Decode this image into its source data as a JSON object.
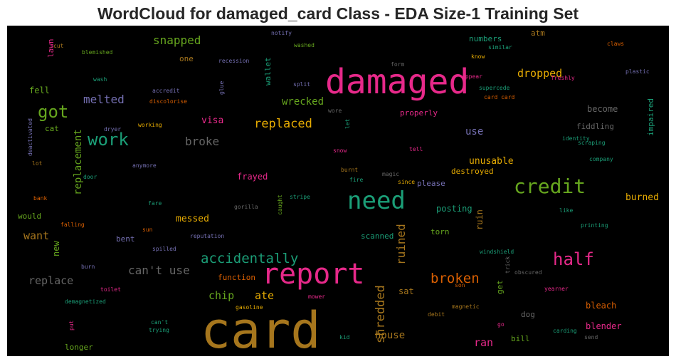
{
  "chart_data": {
    "type": "wordcloud",
    "title": "WordCloud for damaged_card Class - EDA Size-1 Training Set",
    "background": "#000000",
    "palette": {
      "pink": "#e7298a",
      "orange": "#d95f02",
      "gold": "#e6ab02",
      "teal": "#1b9e77",
      "green": "#66a61e",
      "purple": "#7570b3",
      "brown": "#a6761d",
      "gray": "#666666"
    },
    "words": [
      {
        "text": "card",
        "color": "brown"
      },
      {
        "text": "damaged",
        "color": "pink"
      },
      {
        "text": "report",
        "color": "pink"
      },
      {
        "text": "need",
        "color": "teal"
      },
      {
        "text": "credit",
        "color": "green"
      },
      {
        "text": "got",
        "color": "green"
      },
      {
        "text": "half",
        "color": "pink"
      },
      {
        "text": "work",
        "color": "teal"
      },
      {
        "text": "accidentally",
        "color": "teal"
      },
      {
        "text": "broken",
        "color": "orange"
      },
      {
        "text": "shredded",
        "color": "brown"
      },
      {
        "text": "ruined",
        "color": "brown"
      },
      {
        "text": "replaced",
        "color": "gold"
      },
      {
        "text": "can't use",
        "color": "gray"
      },
      {
        "text": "replacement",
        "color": "green"
      },
      {
        "text": "replace",
        "color": "gray"
      },
      {
        "text": "snapped",
        "color": "green"
      },
      {
        "text": "melted",
        "color": "purple"
      },
      {
        "text": "dropped",
        "color": "gold"
      },
      {
        "text": "broke",
        "color": "gray"
      },
      {
        "text": "want",
        "color": "brown"
      },
      {
        "text": "chip",
        "color": "green"
      },
      {
        "text": "ran",
        "color": "pink"
      },
      {
        "text": "ate",
        "color": "gold"
      },
      {
        "text": "wrecked",
        "color": "green"
      },
      {
        "text": "house",
        "color": "brown"
      },
      {
        "text": "messed",
        "color": "gold"
      },
      {
        "text": "unusable",
        "color": "gold"
      },
      {
        "text": "burned",
        "color": "gold"
      },
      {
        "text": "use",
        "color": "purple"
      },
      {
        "text": "visa",
        "color": "pink"
      },
      {
        "text": "fell",
        "color": "green"
      },
      {
        "text": "new",
        "color": "green"
      },
      {
        "text": "blender",
        "color": "pink"
      },
      {
        "text": "bleach",
        "color": "orange"
      },
      {
        "text": "dog",
        "color": "gray"
      },
      {
        "text": "sat",
        "color": "brown"
      },
      {
        "text": "torn",
        "color": "green"
      },
      {
        "text": "scanned",
        "color": "teal"
      },
      {
        "text": "destroyed",
        "color": "gold"
      },
      {
        "text": "frayed",
        "color": "pink"
      },
      {
        "text": "posting",
        "color": "teal"
      },
      {
        "text": "ruin",
        "color": "brown"
      },
      {
        "text": "numbers",
        "color": "teal"
      },
      {
        "text": "fiddling",
        "color": "gray"
      },
      {
        "text": "become",
        "color": "gray"
      },
      {
        "text": "longer",
        "color": "green"
      },
      {
        "text": "bill",
        "color": "green"
      },
      {
        "text": "please",
        "color": "purple"
      },
      {
        "text": "bent",
        "color": "purple"
      },
      {
        "text": "properly",
        "color": "pink"
      },
      {
        "text": "atm",
        "color": "brown"
      },
      {
        "text": "would",
        "color": "green"
      },
      {
        "text": "function",
        "color": "orange"
      },
      {
        "text": "impaired",
        "color": "teal"
      },
      {
        "text": "get",
        "color": "green"
      },
      {
        "text": "notify",
        "color": "purple"
      },
      {
        "text": "lawn",
        "color": "pink"
      },
      {
        "text": "cut",
        "color": "brown"
      },
      {
        "text": "washed",
        "color": "green"
      },
      {
        "text": "claws",
        "color": "orange"
      },
      {
        "text": "blemished",
        "color": "green"
      },
      {
        "text": "one",
        "color": "brown"
      },
      {
        "text": "recession",
        "color": "purple"
      },
      {
        "text": "wallet",
        "color": "teal"
      },
      {
        "text": "form",
        "color": "gray"
      },
      {
        "text": "similar",
        "color": "teal"
      },
      {
        "text": "know",
        "color": "gold"
      },
      {
        "text": "wash",
        "color": "teal"
      },
      {
        "text": "glue",
        "color": "purple"
      },
      {
        "text": "appear",
        "color": "pink"
      },
      {
        "text": "freshly",
        "color": "pink"
      },
      {
        "text": "plastic",
        "color": "purple"
      },
      {
        "text": "accredit",
        "color": "purple"
      },
      {
        "text": "split",
        "color": "purple"
      },
      {
        "text": "supercede",
        "color": "teal"
      },
      {
        "text": "discolorise",
        "color": "orange"
      },
      {
        "text": "card card",
        "color": "orange"
      },
      {
        "text": "deactivated",
        "color": "purple"
      },
      {
        "text": "wore",
        "color": "gray"
      },
      {
        "text": "cat",
        "color": "green"
      },
      {
        "text": "working",
        "color": "gold"
      },
      {
        "text": "dryer",
        "color": "purple"
      },
      {
        "text": "let",
        "color": "teal"
      },
      {
        "text": "identity",
        "color": "teal"
      },
      {
        "text": "scraping",
        "color": "teal"
      },
      {
        "text": "snow",
        "color": "pink"
      },
      {
        "text": "tell",
        "color": "pink"
      },
      {
        "text": "company",
        "color": "teal"
      },
      {
        "text": "lot",
        "color": "brown"
      },
      {
        "text": "anymore",
        "color": "purple"
      },
      {
        "text": "burnt",
        "color": "brown"
      },
      {
        "text": "magic",
        "color": "gray"
      },
      {
        "text": "door",
        "color": "teal"
      },
      {
        "text": "fire",
        "color": "teal"
      },
      {
        "text": "since",
        "color": "gold"
      },
      {
        "text": "bank",
        "color": "orange"
      },
      {
        "text": "fare",
        "color": "teal"
      },
      {
        "text": "gorilla",
        "color": "gray"
      },
      {
        "text": "caught",
        "color": "green"
      },
      {
        "text": "stripe",
        "color": "teal"
      },
      {
        "text": "like",
        "color": "teal"
      },
      {
        "text": "falling",
        "color": "orange"
      },
      {
        "text": "sun",
        "color": "orange"
      },
      {
        "text": "reputation",
        "color": "purple"
      },
      {
        "text": "printing",
        "color": "teal"
      },
      {
        "text": "spilled",
        "color": "purple"
      },
      {
        "text": "windshield",
        "color": "teal"
      },
      {
        "text": "burn",
        "color": "purple"
      },
      {
        "text": "obscured",
        "color": "gray"
      },
      {
        "text": "trick",
        "color": "gray"
      },
      {
        "text": "toilet",
        "color": "pink"
      },
      {
        "text": "mower",
        "color": "pink"
      },
      {
        "text": "son",
        "color": "orange"
      },
      {
        "text": "yearner",
        "color": "pink"
      },
      {
        "text": "demagnetized",
        "color": "teal"
      },
      {
        "text": "gasoline",
        "color": "gold"
      },
      {
        "text": "magnetic",
        "color": "brown"
      },
      {
        "text": "debit",
        "color": "brown"
      },
      {
        "text": "put",
        "color": "pink"
      },
      {
        "text": "can't",
        "color": "teal"
      },
      {
        "text": "trying",
        "color": "teal"
      },
      {
        "text": "go",
        "color": "pink"
      },
      {
        "text": "carding",
        "color": "teal"
      },
      {
        "text": "kid",
        "color": "teal"
      },
      {
        "text": "send",
        "color": "gray"
      }
    ]
  }
}
